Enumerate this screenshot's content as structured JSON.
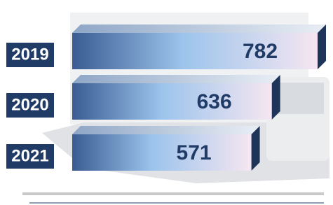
{
  "chart_data": {
    "type": "bar",
    "orientation": "horizontal",
    "categories": [
      "2019",
      "2020",
      "2021"
    ],
    "values": [
      782,
      636,
      571
    ],
    "color": "#3a5c92",
    "label_color": "#1f3b66"
  }
}
